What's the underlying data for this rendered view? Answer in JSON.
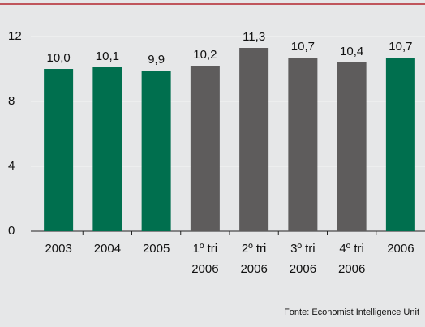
{
  "chart_data": {
    "type": "bar",
    "categories": [
      "2003",
      "2004",
      "2005",
      "1º tri 2006",
      "2º tri 2006",
      "3º tri 2006",
      "4º tri 2006",
      "2006"
    ],
    "values": [
      10.0,
      10.1,
      9.9,
      10.2,
      11.3,
      10.7,
      10.4,
      10.7
    ],
    "value_labels": [
      "10,0",
      "10,1",
      "9,9",
      "10,2",
      "11,3",
      "10,7",
      "10,4",
      "10,7"
    ],
    "colors": [
      "#006f4e",
      "#006f4e",
      "#006f4e",
      "#5e5c5c",
      "#5e5c5c",
      "#5e5c5c",
      "#5e5c5c",
      "#006f4e"
    ],
    "ylim": [
      0,
      12
    ],
    "yticks": [
      0,
      4,
      8,
      12
    ],
    "grid": true,
    "source": "Fonte: Economist Intelligence Unit"
  }
}
